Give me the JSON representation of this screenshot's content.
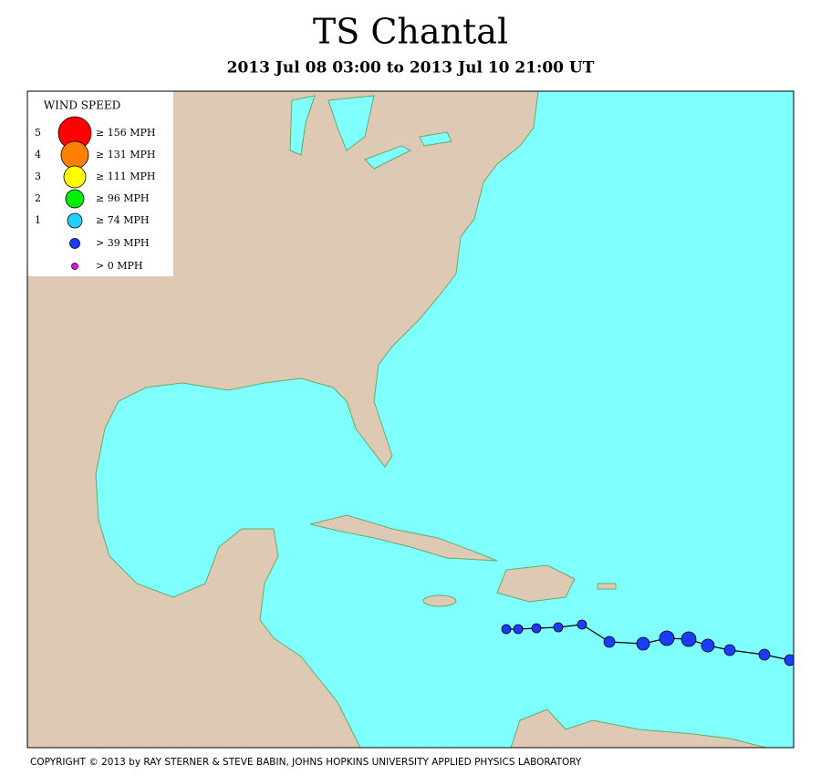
{
  "title": "TS Chantal",
  "subtitle": "2013 Jul 08 03:00 to 2013 Jul 10 21:00 UT",
  "legend": {
    "title": "WIND SPEED",
    "entries": [
      {
        "category": "5",
        "label": "≥ 156 MPH"
      },
      {
        "category": "4",
        "label": "≥ 131 MPH"
      },
      {
        "category": "3",
        "label": "≥ 111 MPH"
      },
      {
        "category": "2",
        "label": "≥ 96 MPH"
      },
      {
        "category": "1",
        "label": "≥ 74 MPH"
      },
      {
        "label": "> 39 MPH"
      },
      {
        "label": "> 0 MPH"
      }
    ]
  },
  "copyright": "COPYRIGHT © 2013 by RAY STERNER & STEVE BABIN, JOHNS HOPKINS UNIVERSITY APPLIED PHYSICS LABORATORY"
}
